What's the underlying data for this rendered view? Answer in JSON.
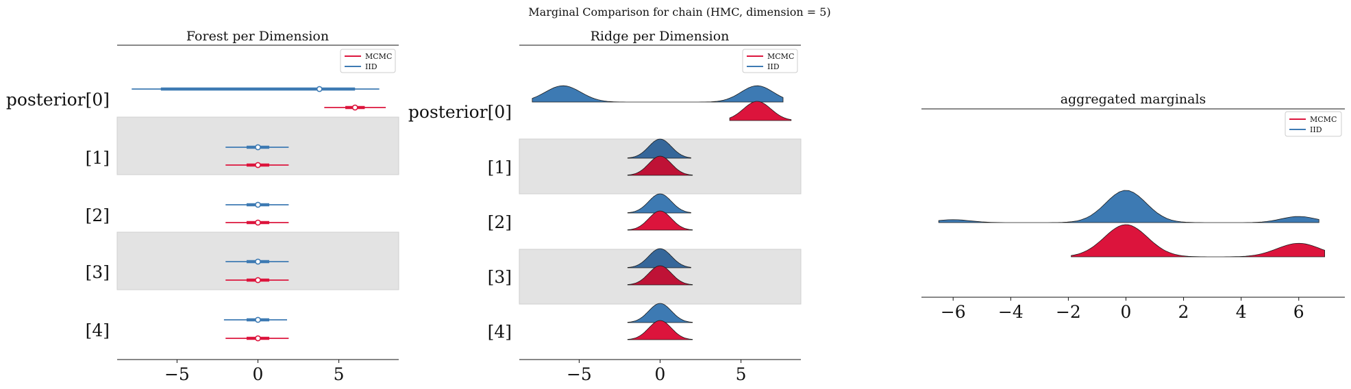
{
  "suptitle": "Marginal Comparison for chain (HMC, dimension = 5)",
  "colors": {
    "mcmc": "#dc143c",
    "iid": "#3d7ab3",
    "band": "#e3e3e3",
    "band_edge": "#cfcfcf"
  },
  "legend": {
    "mcmc": "MCMC",
    "iid": "IID"
  },
  "chart_data": [
    {
      "type": "forest",
      "title": "Forest per Dimension",
      "xlim": [
        -8.7,
        8.7
      ],
      "xticks": [
        "−5",
        "0",
        "5"
      ],
      "xtick_values": [
        -5,
        0,
        5
      ],
      "rows": [
        {
          "label": "posterior[0]",
          "iid": {
            "hdi94": [
              -7.8,
              7.5
            ],
            "iqr": [
              -6.0,
              6.0
            ],
            "median": 3.8
          },
          "mcmc": {
            "hdi94": [
              4.1,
              7.9
            ],
            "iqr": [
              5.4,
              6.6
            ],
            "median": 6.0
          }
        },
        {
          "label": "[1]",
          "iid": {
            "hdi94": [
              -2.0,
              1.9
            ],
            "iqr": [
              -0.7,
              0.7
            ],
            "median": 0.0
          },
          "mcmc": {
            "hdi94": [
              -2.0,
              1.9
            ],
            "iqr": [
              -0.7,
              0.7
            ],
            "median": 0.0
          }
        },
        {
          "label": "[2]",
          "iid": {
            "hdi94": [
              -2.0,
              1.9
            ],
            "iqr": [
              -0.7,
              0.7
            ],
            "median": 0.0
          },
          "mcmc": {
            "hdi94": [
              -2.0,
              1.9
            ],
            "iqr": [
              -0.7,
              0.7
            ],
            "median": 0.0
          }
        },
        {
          "label": "[3]",
          "iid": {
            "hdi94": [
              -2.0,
              1.9
            ],
            "iqr": [
              -0.7,
              0.7
            ],
            "median": 0.0
          },
          "mcmc": {
            "hdi94": [
              -2.0,
              1.9
            ],
            "iqr": [
              -0.7,
              0.7
            ],
            "median": 0.0
          }
        },
        {
          "label": "[4]",
          "iid": {
            "hdi94": [
              -2.1,
              1.8
            ],
            "iqr": [
              -0.7,
              0.7
            ],
            "median": 0.0
          },
          "mcmc": {
            "hdi94": [
              -2.0,
              1.9
            ],
            "iqr": [
              -0.7,
              0.7
            ],
            "median": 0.0
          }
        }
      ]
    },
    {
      "type": "ridge",
      "title": "Ridge per Dimension",
      "xlim": [
        -8.7,
        8.7
      ],
      "xticks": [
        "−5",
        "0",
        "5"
      ],
      "xtick_values": [
        -5,
        0,
        5
      ],
      "rows": [
        {
          "label": "posterior[0]",
          "iid": {
            "range": [
              -7.9,
              7.6
            ],
            "modes": [
              [
                -6.0,
                1.0,
                1.1
              ],
              [
                6.0,
                1.0,
                1.0
              ]
            ],
            "peak": 0.85
          },
          "mcmc": {
            "range": [
              4.3,
              8.1
            ],
            "modes": [
              [
                6.0,
                1.0,
                0.85
              ]
            ],
            "peak": 1.0
          }
        },
        {
          "label": "[1]",
          "iid": {
            "range": [
              -2.0,
              1.9
            ],
            "modes": [
              [
                0.0,
                1.0,
                0.7
              ]
            ],
            "peak": 1.0
          },
          "mcmc": {
            "range": [
              -2.0,
              2.0
            ],
            "modes": [
              [
                0.0,
                1.0,
                0.7
              ]
            ],
            "peak": 1.0
          }
        },
        {
          "label": "[2]",
          "iid": {
            "range": [
              -2.0,
              1.9
            ],
            "modes": [
              [
                0.0,
                1.0,
                0.7
              ]
            ],
            "peak": 1.0
          },
          "mcmc": {
            "range": [
              -2.0,
              2.0
            ],
            "modes": [
              [
                0.0,
                1.0,
                0.7
              ]
            ],
            "peak": 1.0
          }
        },
        {
          "label": "[3]",
          "iid": {
            "range": [
              -2.0,
              1.9
            ],
            "modes": [
              [
                0.0,
                1.0,
                0.7
              ]
            ],
            "peak": 1.0
          },
          "mcmc": {
            "range": [
              -2.0,
              2.0
            ],
            "modes": [
              [
                0.0,
                1.0,
                0.7
              ]
            ],
            "peak": 1.0
          }
        },
        {
          "label": "[4]",
          "iid": {
            "range": [
              -2.0,
              2.0
            ],
            "modes": [
              [
                0.0,
                1.0,
                0.7
              ]
            ],
            "peak": 1.0
          },
          "mcmc": {
            "range": [
              -2.0,
              2.0
            ],
            "modes": [
              [
                0.0,
                1.0,
                0.7
              ]
            ],
            "peak": 1.0
          }
        }
      ]
    },
    {
      "type": "area",
      "title": "aggregated marginals",
      "xlim": [
        -7.1,
        7.6
      ],
      "xticks": [
        "−6",
        "−4",
        "−2",
        "0",
        "2",
        "4",
        "6"
      ],
      "xtick_values": [
        -6,
        -4,
        -2,
        0,
        2,
        4,
        6
      ],
      "series": [
        {
          "name": "IID",
          "range": [
            -6.5,
            6.7
          ],
          "modes": [
            [
              0.0,
              1.0,
              0.7
            ],
            [
              -6.0,
              0.09,
              0.6
            ],
            [
              6.0,
              0.19,
              0.6
            ]
          ]
        },
        {
          "name": "MCMC",
          "range": [
            -1.9,
            6.9
          ],
          "modes": [
            [
              0.0,
              1.0,
              0.75
            ],
            [
              6.0,
              0.42,
              0.75
            ]
          ]
        }
      ]
    }
  ]
}
